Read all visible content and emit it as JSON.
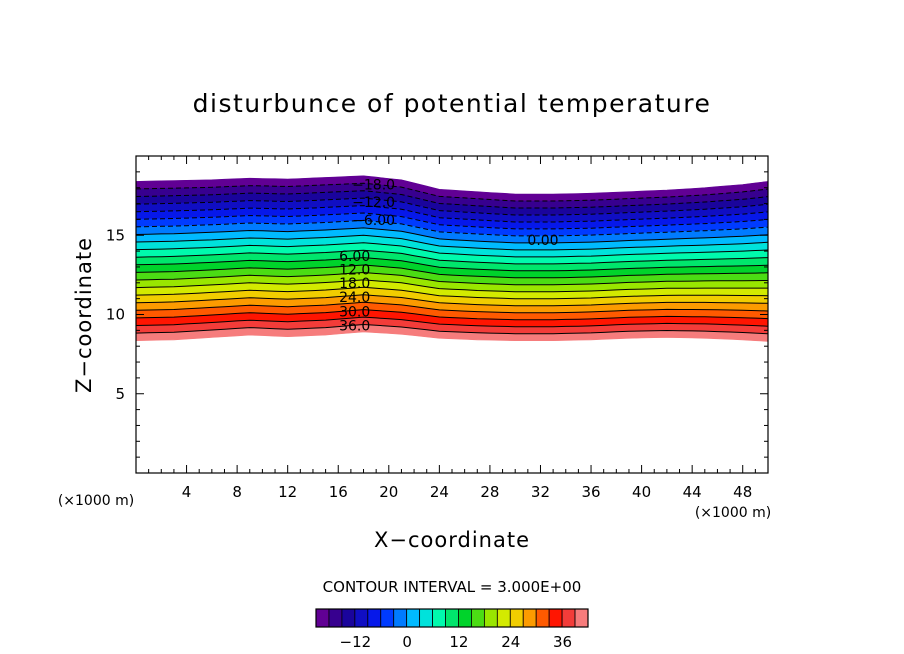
{
  "chart_data": {
    "type": "heatmap",
    "title": "disturbunce of potential temperature",
    "xlabel": "X−coordinate",
    "ylabel": "Z−coordinate",
    "x_unit": "(×1000 m)",
    "y_unit": "(×1000 m)",
    "xlim": [
      0,
      50
    ],
    "ylim": [
      0,
      20
    ],
    "x_ticks": [
      4,
      8,
      12,
      16,
      20,
      24,
      28,
      32,
      36,
      40,
      44,
      48
    ],
    "y_ticks": [
      5,
      10,
      15
    ],
    "contour_interval_text": "CONTOUR INTERVAL = 3.000E+00",
    "contour_labels": [
      {
        "text": "−18.0",
        "x": 18.8,
        "z": 18.2
      },
      {
        "text": "−12.0",
        "x": 18.8,
        "z": 17.1
      },
      {
        "text": "−6.00",
        "x": 18.8,
        "z": 15.95
      },
      {
        "text": "0.00",
        "x": 32.2,
        "z": 14.7
      },
      {
        "text": "6.00",
        "x": 17.3,
        "z": 13.7
      },
      {
        "text": "12.0",
        "x": 17.3,
        "z": 12.85
      },
      {
        "text": "18.0",
        "x": 17.3,
        "z": 12.0
      },
      {
        "text": "24.0",
        "x": 17.3,
        "z": 11.1
      },
      {
        "text": "30.0",
        "x": 17.3,
        "z": 10.2
      },
      {
        "text": "36.0",
        "x": 17.3,
        "z": 9.3
      }
    ],
    "levels": [
      -21,
      -18,
      -15,
      -12,
      -9,
      -6,
      -3,
      0,
      3,
      6,
      9,
      12,
      15,
      18,
      21,
      24,
      27,
      30,
      33,
      36,
      39,
      42
    ],
    "boundary_x": [
      0,
      3,
      6,
      9,
      12,
      15,
      18,
      21,
      24,
      27,
      30,
      33,
      36,
      39,
      42,
      45,
      48,
      50
    ],
    "top_boundary_z": [
      18.4,
      18.45,
      18.5,
      18.6,
      18.55,
      18.65,
      18.75,
      18.5,
      17.9,
      17.75,
      17.6,
      17.6,
      17.65,
      17.75,
      17.85,
      18.0,
      18.2,
      18.4
    ],
    "bottom_boundary_z": [
      8.35,
      8.4,
      8.55,
      8.7,
      8.6,
      8.7,
      8.9,
      8.75,
      8.5,
      8.4,
      8.35,
      8.35,
      8.4,
      8.5,
      8.55,
      8.5,
      8.4,
      8.3
    ],
    "colorbar": {
      "min": -21,
      "max": 42,
      "ticks": [
        -12,
        0,
        12,
        24,
        36
      ],
      "tick_labels": [
        "−12",
        "0",
        "12",
        "24",
        "36"
      ]
    }
  }
}
